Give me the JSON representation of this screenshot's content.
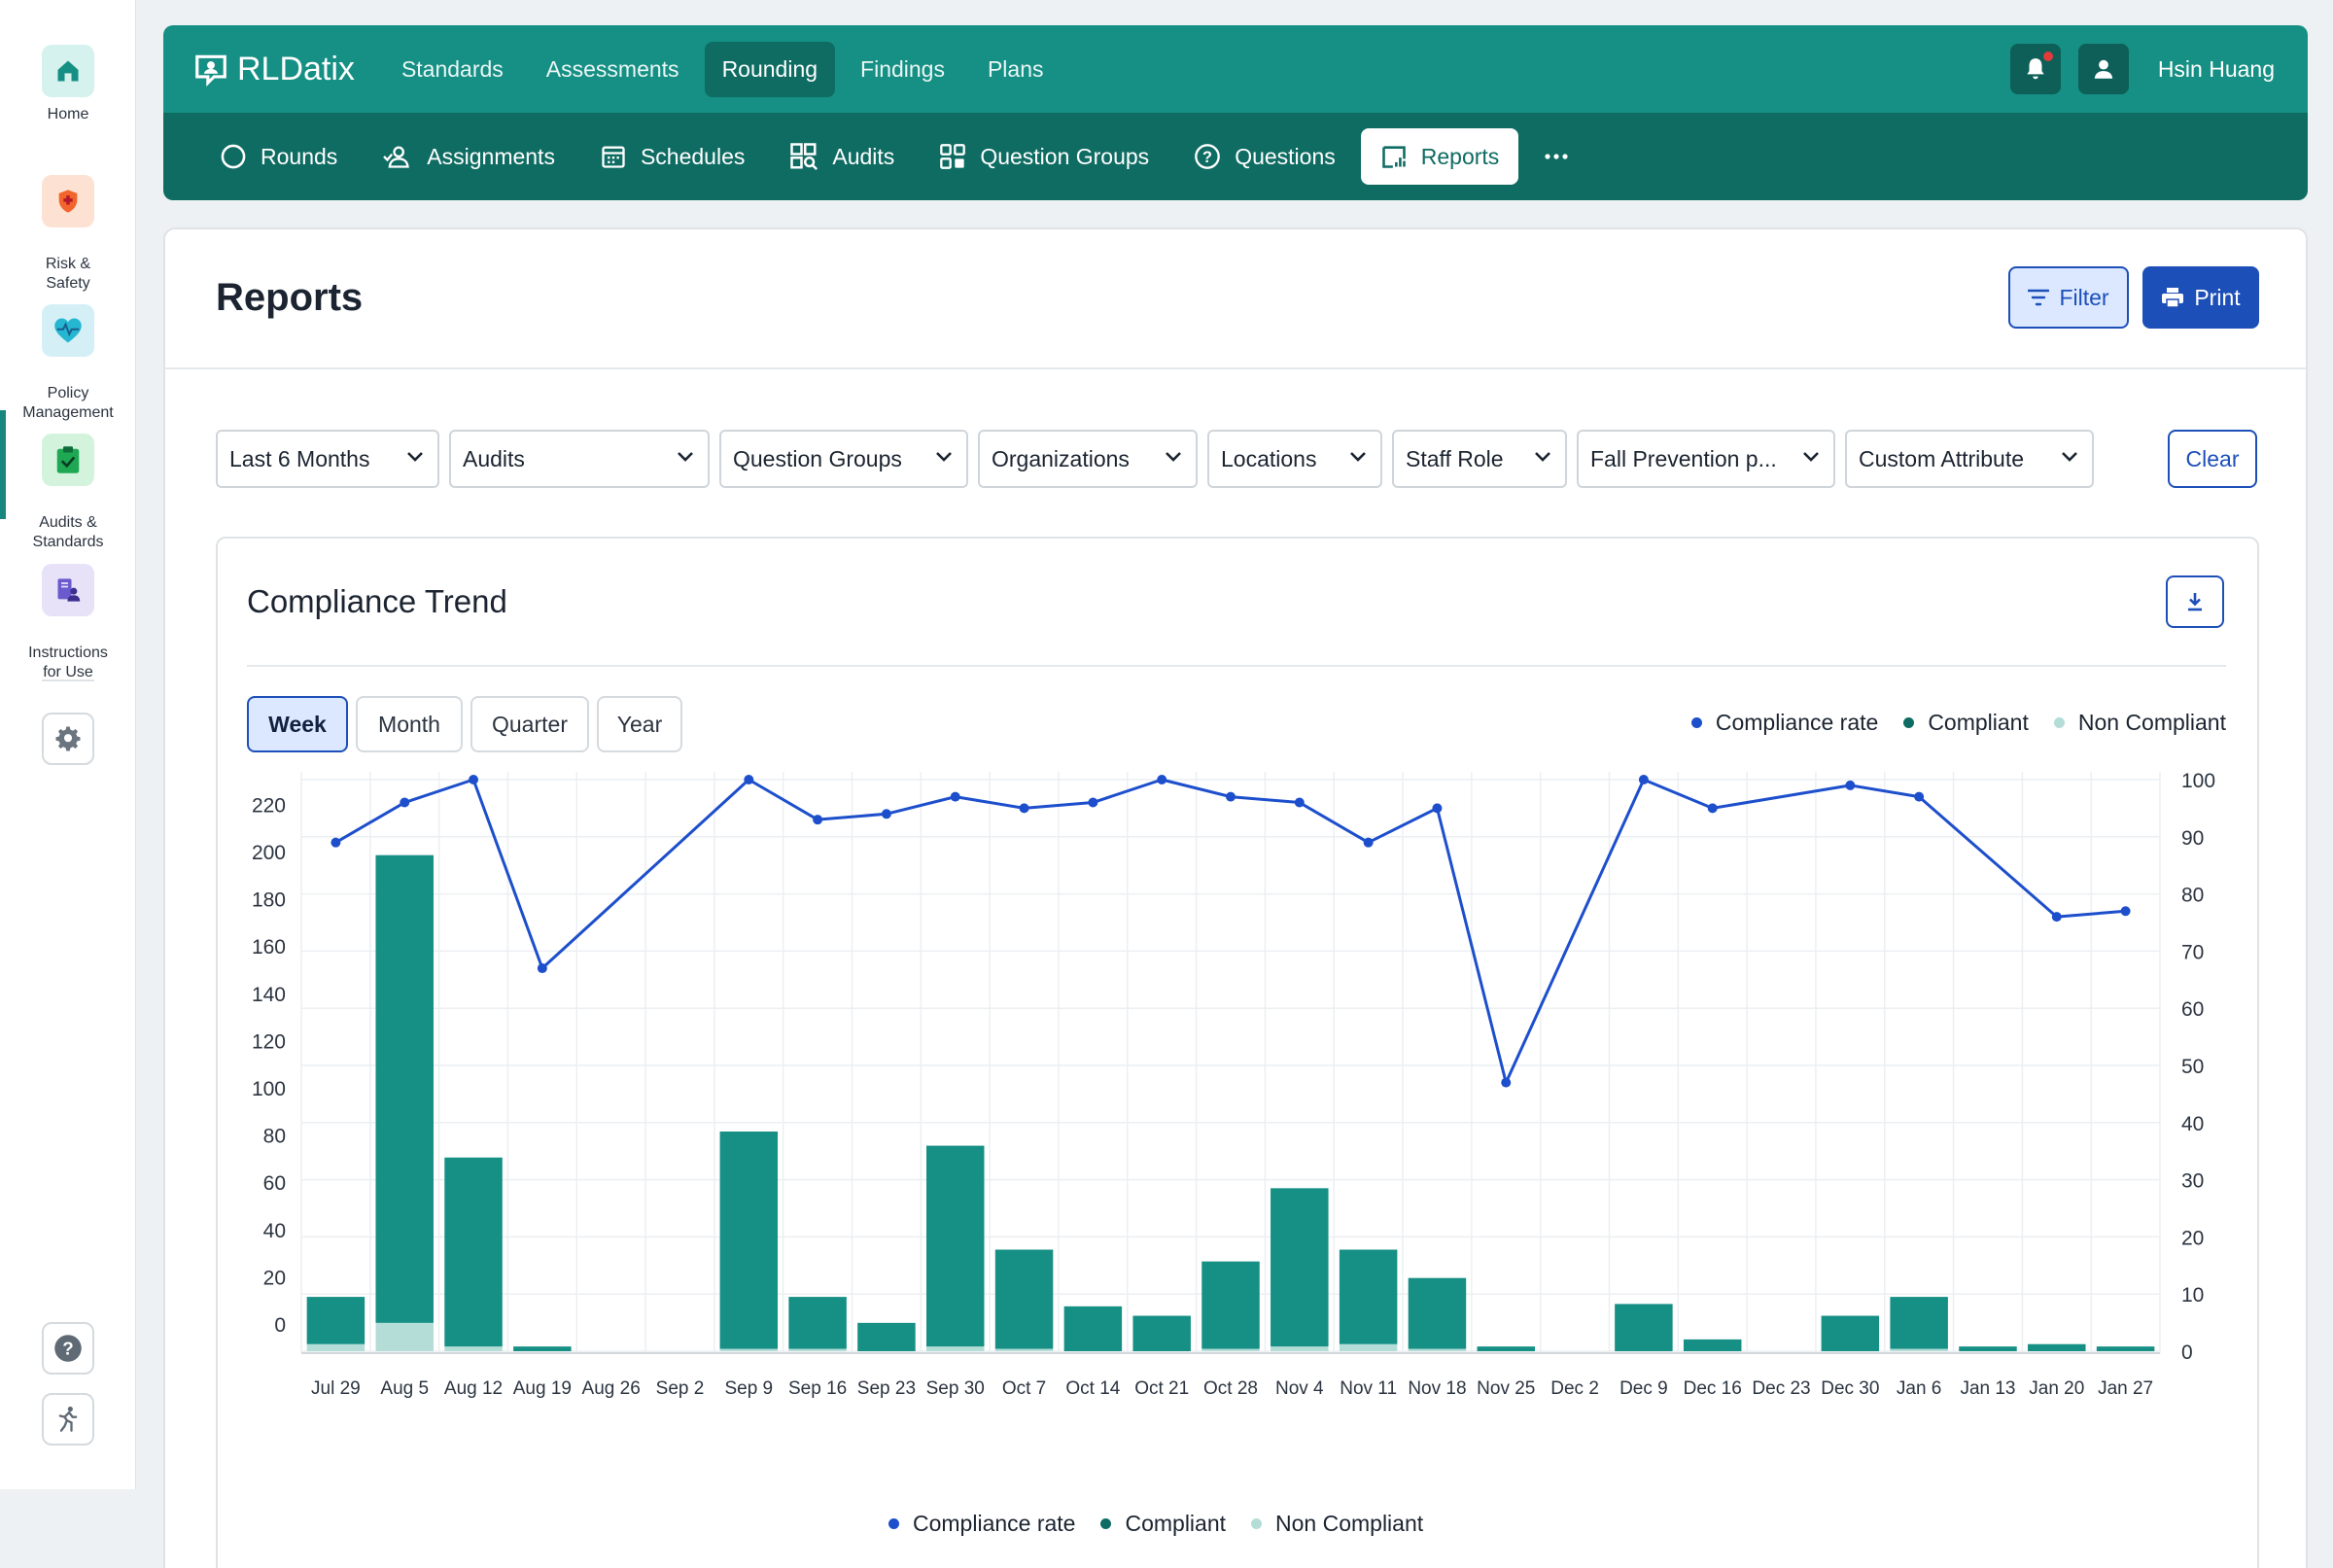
{
  "rail": {
    "items": [
      {
        "label": "Home"
      },
      {
        "label": "Risk &\nSafety"
      },
      {
        "label": "Policy\nManagement"
      },
      {
        "label": "Audits &\nStandards"
      },
      {
        "label": "Instructions\nfor Use"
      }
    ]
  },
  "topnav": {
    "brand": "RLDatix",
    "links": [
      "Standards",
      "Assessments",
      "Rounding",
      "Findings",
      "Plans"
    ],
    "active_link": "Rounding",
    "user": "Hsin Huang"
  },
  "subnav": {
    "links": [
      "Rounds",
      "Assignments",
      "Schedules",
      "Audits",
      "Question Groups",
      "Questions",
      "Reports"
    ],
    "active_link": "Reports"
  },
  "page": {
    "title": "Reports",
    "filter_label": "Filter",
    "print_label": "Print",
    "clear_label": "Clear"
  },
  "filters": [
    {
      "value": "Last 6 Months"
    },
    {
      "value": "Audits"
    },
    {
      "value": "Question Groups"
    },
    {
      "value": "Organizations"
    },
    {
      "value": "Locations"
    },
    {
      "value": "Staff Role"
    },
    {
      "value": "Fall Prevention p..."
    },
    {
      "value": "Custom Attribute"
    }
  ],
  "chart_card": {
    "title": "Compliance Trend",
    "periods": [
      "Week",
      "Month",
      "Quarter",
      "Year"
    ],
    "active_period": "Week"
  },
  "colors": {
    "compliance_rate": "#1d4fcc",
    "compliant": "#168f84",
    "non_compliant": "#b4ddd7",
    "accent": "#1d4fb8",
    "nav": "#168f84"
  },
  "chart_data": {
    "type": "bar",
    "categories": [
      "Jul 29",
      "Aug 5",
      "Aug 12",
      "Aug 19",
      "Aug 26",
      "Sep 2",
      "Sep 9",
      "Sep 16",
      "Sep 23",
      "Sep 30",
      "Oct 7",
      "Oct 14",
      "Oct 21",
      "Oct 28",
      "Nov 4",
      "Nov 11",
      "Nov 18",
      "Nov 25",
      "Dec 2",
      "Dec 9",
      "Dec 16",
      "Dec 23",
      "Dec 30",
      "Jan 6",
      "Jan 13",
      "Jan 20",
      "Jan 27"
    ],
    "series": [
      {
        "name": "Compliant",
        "type": "bar",
        "axis": "left",
        "values": [
          20,
          198,
          80,
          2,
          0,
          0,
          92,
          22,
          12,
          85,
          42,
          19,
          15,
          37,
          67,
          40,
          30,
          2,
          0,
          20,
          5,
          0,
          15,
          22,
          2,
          3,
          2
        ]
      },
      {
        "name": "Non Compliant",
        "type": "bar",
        "axis": "left",
        "values": [
          3,
          12,
          2,
          0,
          0,
          0,
          1,
          1,
          0,
          2,
          1,
          0,
          0,
          1,
          2,
          3,
          1,
          0,
          0,
          0,
          0,
          0,
          0,
          1,
          0,
          0,
          0
        ]
      },
      {
        "name": "Compliance rate",
        "type": "line",
        "axis": "right",
        "values": [
          89,
          96,
          100,
          67,
          null,
          null,
          100,
          93,
          94,
          97,
          95,
          96,
          100,
          97,
          96,
          89,
          95,
          47,
          null,
          100,
          95,
          null,
          99,
          97,
          null,
          76,
          77
        ]
      }
    ],
    "y_left": {
      "ticks": [
        0,
        20,
        40,
        60,
        80,
        100,
        120,
        140,
        160,
        180,
        200,
        220
      ]
    },
    "y_right": {
      "ticks": [
        0,
        10,
        20,
        30,
        40,
        50,
        60,
        70,
        80,
        90,
        100
      ]
    },
    "legend": [
      "Compliance rate",
      "Compliant",
      "Non Compliant"
    ],
    "legend_position": "top-right and bottom-center",
    "grid": true
  }
}
